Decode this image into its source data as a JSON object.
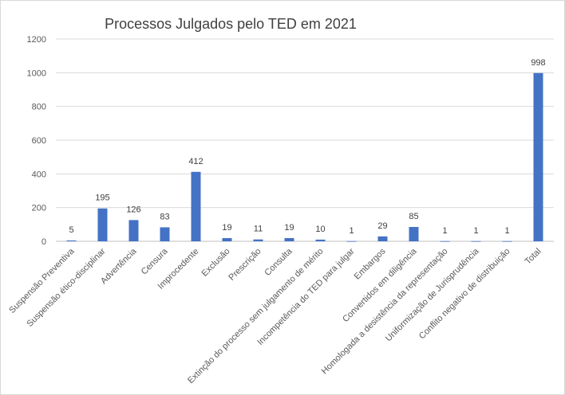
{
  "chart_data": {
    "type": "bar",
    "title": "Processos Julgados pelo TED em 2021",
    "xlabel": "",
    "ylabel": "",
    "ylim": [
      0,
      1200
    ],
    "yticks": [
      0,
      200,
      400,
      600,
      800,
      1000,
      1200
    ],
    "grid": true,
    "legend": "none",
    "bar_color": "#4472c4",
    "categories": [
      "Suspensão Preventiva",
      "Suspensão ético-disciplinar",
      "Advertência",
      "Censura",
      "Improcedente",
      "Exclusão",
      "Prescrição",
      "Consulta",
      "Extinção do processo sem julgamento de mérito",
      "Incompetência do TED para julgar",
      "Embargos",
      "Convertidos em diligência",
      "Homologada a desistência da representação",
      "Uniformização de Jurisprudência",
      "Conflito negativo de distribuição",
      "Total"
    ],
    "values": [
      5,
      195,
      126,
      83,
      412,
      19,
      11,
      19,
      10,
      1,
      29,
      85,
      1,
      1,
      1,
      998
    ]
  }
}
